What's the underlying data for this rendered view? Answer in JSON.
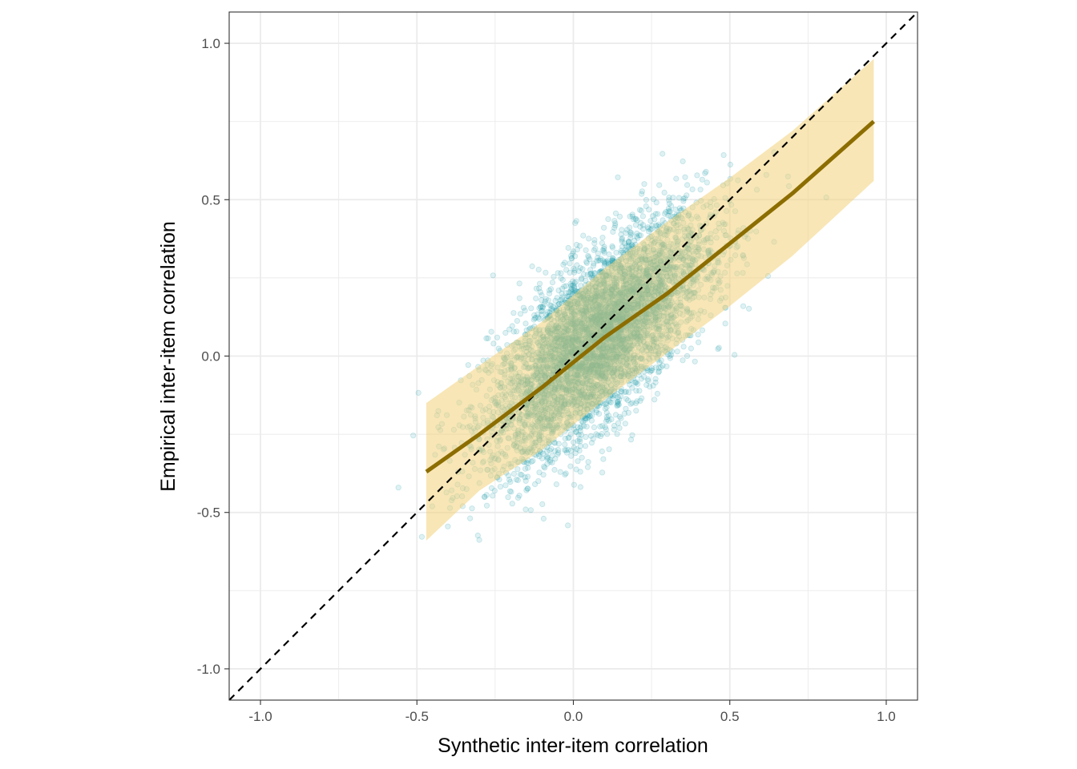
{
  "chart_data": {
    "type": "scatter",
    "title": "",
    "xlabel": "Synthetic inter-item correlation",
    "ylabel": "Empirical inter-item correlation",
    "xlim": [
      -1.1,
      1.1
    ],
    "ylim": [
      -1.1,
      1.1
    ],
    "x_ticks": [
      -1.0,
      -0.5,
      0.0,
      0.5,
      1.0
    ],
    "y_ticks": [
      -1.0,
      -0.5,
      0.0,
      0.5,
      1.0
    ],
    "x_tick_labels": [
      "-1.0",
      "-0.5",
      "0.0",
      "0.5",
      "1.0"
    ],
    "y_tick_labels": [
      "-1.0",
      "-0.5",
      "0.0",
      "0.5",
      "1.0"
    ],
    "grid": true,
    "legend": "none",
    "colors": {
      "points": "#1a9aaa",
      "band": "#f2d27a",
      "fit_line": "#8c6d00",
      "identity_line": "#000000",
      "grid": "#ebebeb",
      "panel_border": "#333333"
    },
    "identity_line": {
      "slope": 1,
      "intercept": 0,
      "style": "dashed"
    },
    "fit_line": {
      "x": [
        -0.47,
        -0.3,
        -0.1,
        0.1,
        0.3,
        0.5,
        0.7,
        0.96
      ],
      "y": [
        -0.37,
        -0.25,
        -0.1,
        0.06,
        0.2,
        0.36,
        0.52,
        0.75
      ]
    },
    "band": {
      "x": [
        -0.47,
        -0.3,
        -0.1,
        0.1,
        0.3,
        0.5,
        0.7,
        0.96
      ],
      "lower": [
        -0.59,
        -0.43,
        -0.3,
        -0.14,
        0.01,
        0.16,
        0.32,
        0.56
      ],
      "upper": [
        -0.15,
        -0.03,
        0.11,
        0.28,
        0.43,
        0.57,
        0.72,
        0.95
      ]
    },
    "scatter_cloud": {
      "n_points": 5500,
      "x_mean": 0.08,
      "x_sd": 0.17,
      "slope": 0.78,
      "intercept": -0.005,
      "residual_sd": 0.13
    }
  }
}
